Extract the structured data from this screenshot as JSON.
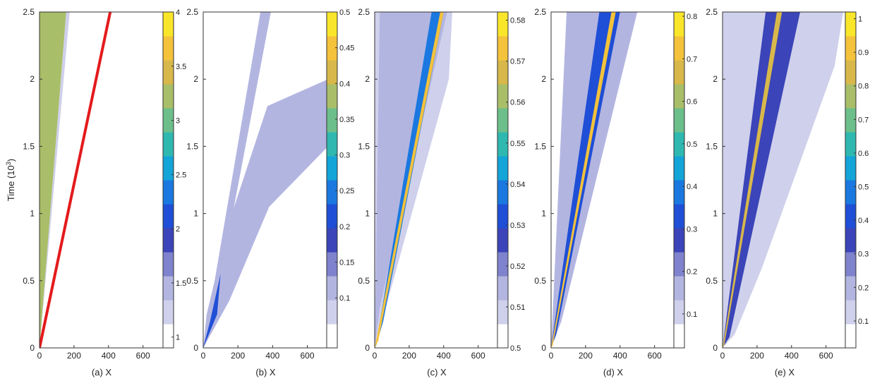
{
  "figure": {
    "ylabel_main": "Time (10",
    "ylabel_exp": "3",
    "ylabel_close": ")"
  },
  "colors": {
    "background": "#ffffff",
    "axis": "#333333",
    "red_line": "#e41a1c",
    "colormap": [
      "#ffffff",
      "#cfd0eb",
      "#b3b5e1",
      "#7f82cc",
      "#3b44b8",
      "#1f4fd6",
      "#1a78e0",
      "#13a4d8",
      "#2fb8b0",
      "#6cbf8a",
      "#a9be68",
      "#d8b84a",
      "#f4c23b",
      "#f9e62b"
    ]
  },
  "chart_data": [
    {
      "type": "heatmap",
      "panel": "(a)",
      "xlabel": "(a) X",
      "ylabel": "Time (10^3)",
      "xlim": [
        0,
        720
      ],
      "ylim": [
        0,
        2.5
      ],
      "xticks": [
        0,
        200,
        400,
        600
      ],
      "xtick_labels": [
        "0",
        "200",
        "400",
        "600"
      ],
      "yticks": [
        0,
        0.5,
        1,
        1.5,
        2,
        2.5
      ],
      "ytick_labels": [
        "0",
        "0.5",
        "1",
        "1.5",
        "2",
        "2.5"
      ],
      "colorbar": {
        "min": 0.9,
        "max": 4,
        "ticks": [
          1,
          1.5,
          2,
          2.5,
          3,
          3.5,
          4
        ],
        "tick_labels": [
          "1",
          "1.5",
          "2",
          "2.5",
          "3",
          "3.5",
          "4"
        ]
      },
      "regions": [
        {
          "name": "filled-core",
          "points": [
            [
              0,
              0
            ],
            [
              0,
              2.5
            ],
            [
              155,
              2.5
            ]
          ],
          "value": 3.4
        },
        {
          "name": "dense-band",
          "points": [
            [
              0,
              0
            ],
            [
              155,
              2.5
            ],
            [
              175,
              2.5
            ],
            [
              200,
              1.6
            ],
            [
              110,
              0.6
            ]
          ],
          "value": 1.15
        },
        {
          "name": "outer-halo",
          "points": [
            [
              0,
              0
            ],
            [
              175,
              2.5
            ],
            [
              370,
              2.5
            ],
            [
              370,
              1.9
            ],
            [
              270,
              1.35
            ],
            [
              110,
              0.25
            ]
          ],
          "value": 1.0
        }
      ],
      "red_line": [
        [
          0,
          0
        ],
        [
          410,
          2.5
        ]
      ]
    },
    {
      "type": "heatmap",
      "panel": "(b)",
      "xlabel": "(b) X",
      "xlim": [
        0,
        720
      ],
      "ylim": [
        0,
        2.5
      ],
      "xticks": [
        0,
        200,
        400,
        600
      ],
      "xtick_labels": [
        "0",
        "200",
        "400",
        "600"
      ],
      "yticks": [
        0,
        0.5,
        1,
        1.5,
        2,
        2.5
      ],
      "ytick_labels": [
        "0",
        "0.5",
        "1",
        "1.5",
        "2",
        "2.5"
      ],
      "colorbar": {
        "min": 0.03,
        "max": 0.5,
        "ticks": [
          0.1,
          0.15,
          0.2,
          0.25,
          0.3,
          0.35,
          0.4,
          0.45,
          0.5
        ],
        "tick_labels": [
          "0.1",
          "0.15",
          "0.2",
          "0.25",
          "0.3",
          "0.35",
          "0.4",
          "0.45",
          "0.5"
        ]
      },
      "regions": [
        {
          "name": "upper-haze",
          "points": [
            [
              0,
              1.4
            ],
            [
              0,
              2.5
            ],
            [
              330,
              2.5
            ],
            [
              170,
              1.4
            ]
          ],
          "value": 0.04
        },
        {
          "name": "left-ray",
          "points": [
            [
              0,
              0
            ],
            [
              330,
              2.5
            ],
            [
              390,
              2.5
            ],
            [
              60,
              0.25
            ]
          ],
          "value": 0.09
        },
        {
          "name": "lower-band",
          "points": [
            [
              0,
              0
            ],
            [
              20,
              0.25
            ],
            [
              140,
              0.9
            ],
            [
              370,
              1.8
            ],
            [
              720,
              2.0
            ],
            [
              720,
              1.5
            ],
            [
              380,
              1.05
            ],
            [
              150,
              0.35
            ]
          ],
          "value": 0.1
        },
        {
          "name": "lower-band-core",
          "points": [
            [
              0,
              0
            ],
            [
              40,
              0.2
            ],
            [
              100,
              0.55
            ],
            [
              80,
              0.25
            ]
          ],
          "value": 0.2
        }
      ],
      "red_line": null
    },
    {
      "type": "heatmap",
      "panel": "(c)",
      "xlabel": "(c) X",
      "xlim": [
        0,
        720
      ],
      "ylim": [
        0,
        2.5
      ],
      "xticks": [
        0,
        200,
        400,
        600
      ],
      "xtick_labels": [
        "0",
        "200",
        "400",
        "600"
      ],
      "yticks": [
        0,
        0.5,
        1,
        1.5,
        2,
        2.5
      ],
      "ytick_labels": [
        "0",
        "0.5",
        "1",
        "1.5",
        "2",
        "2.5"
      ],
      "colorbar": {
        "min": 0.5,
        "max": 0.582,
        "ticks": [
          0.5,
          0.51,
          0.52,
          0.53,
          0.54,
          0.55,
          0.56,
          0.57,
          0.58
        ],
        "tick_labels": [
          "0.5",
          "0.51",
          "0.52",
          "0.53",
          "0.54",
          "0.55",
          "0.56",
          "0.57",
          "0.58"
        ]
      },
      "regions": [
        {
          "name": "wedge-halo",
          "points": [
            [
              0,
              0
            ],
            [
              0,
              2.5
            ],
            [
              450,
              2.5
            ],
            [
              430,
              2.0
            ]
          ],
          "value": 0.505
        },
        {
          "name": "wedge-body",
          "points": [
            [
              0,
              0
            ],
            [
              30,
              2.5
            ],
            [
              420,
              2.5
            ],
            [
              30,
              0.3
            ]
          ],
          "value": 0.515
        },
        {
          "name": "wedge-core",
          "points": [
            [
              5,
              0
            ],
            [
              330,
              2.5
            ],
            [
              400,
              2.5
            ],
            [
              50,
              0.2
            ]
          ],
          "value": 0.535
        },
        {
          "name": "front-ridge",
          "points": [
            [
              0,
              0
            ],
            [
              380,
              2.5
            ],
            [
              400,
              2.5
            ],
            [
              20,
              0.05
            ]
          ],
          "value": 0.575
        }
      ],
      "red_line": null
    },
    {
      "type": "heatmap",
      "panel": "(d)",
      "xlabel": "(d) X",
      "xlim": [
        0,
        720
      ],
      "ylim": [
        0,
        2.5
      ],
      "xticks": [
        0,
        200,
        400,
        600
      ],
      "xtick_labels": [
        "0",
        "200",
        "400",
        "600"
      ],
      "yticks": [
        0,
        0.5,
        1,
        1.5,
        2,
        2.5
      ],
      "ytick_labels": [
        "0",
        "0.5",
        "1",
        "1.5",
        "2",
        "2.5"
      ],
      "colorbar": {
        "min": 0.02,
        "max": 0.81,
        "ticks": [
          0.1,
          0.2,
          0.3,
          0.4,
          0.5,
          0.6,
          0.7,
          0.8
        ],
        "tick_labels": [
          "0.1",
          "0.2",
          "0.3",
          "0.4",
          "0.5",
          "0.6",
          "0.7",
          "0.8"
        ]
      },
      "regions": [
        {
          "name": "wedge-halo",
          "points": [
            [
              0,
              0
            ],
            [
              0,
              2.5
            ],
            [
              580,
              2.5
            ],
            [
              320,
              1.5
            ]
          ],
          "value": 0.04
        },
        {
          "name": "wedge-body",
          "points": [
            [
              0,
              0
            ],
            [
              90,
              2.5
            ],
            [
              500,
              2.5
            ],
            [
              60,
              0.2
            ]
          ],
          "value": 0.12
        },
        {
          "name": "wedge-core",
          "points": [
            [
              0,
              0
            ],
            [
              280,
              2.5
            ],
            [
              400,
              2.5
            ],
            [
              30,
              0.1
            ]
          ],
          "value": 0.35
        },
        {
          "name": "front-ridge",
          "points": [
            [
              0,
              0
            ],
            [
              350,
              2.5
            ],
            [
              375,
              2.5
            ],
            [
              10,
              0.02
            ]
          ],
          "value": 0.75
        }
      ],
      "red_line": null
    },
    {
      "type": "heatmap",
      "panel": "(e)",
      "xlabel": "(e) X",
      "xlim": [
        0,
        720
      ],
      "ylim": [
        0,
        2.5
      ],
      "xticks": [
        0,
        200,
        400,
        600
      ],
      "xtick_labels": [
        "0",
        "200",
        "400",
        "600"
      ],
      "yticks": [
        0,
        0.5,
        1,
        1.5,
        2,
        2.5
      ],
      "ytick_labels": [
        "0",
        "0.5",
        "1",
        "1.5",
        "2",
        "2.5"
      ],
      "colorbar": {
        "min": 0.02,
        "max": 1.02,
        "ticks": [
          0.1,
          0.2,
          0.3,
          0.4,
          0.5,
          0.6,
          0.7,
          0.8,
          0.9,
          1
        ],
        "tick_labels": [
          "0.1",
          "0.2",
          "0.3",
          "0.4",
          "0.5",
          "0.6",
          "0.7",
          "0.8",
          "0.9",
          "1"
        ]
      },
      "regions": [
        {
          "name": "wedge-halo",
          "points": [
            [
              0,
              0
            ],
            [
              0,
              2.5
            ],
            [
              720,
              2.5
            ],
            [
              720,
              1.9
            ],
            [
              300,
              0.8
            ]
          ],
          "value": 0.04
        },
        {
          "name": "wedge-body",
          "points": [
            [
              0,
              0
            ],
            [
              0,
              2.5
            ],
            [
              700,
              2.5
            ],
            [
              650,
              2.1
            ],
            [
              230,
              0.6
            ],
            [
              70,
              0.1
            ]
          ],
          "value": 0.12
        },
        {
          "name": "wedge-core",
          "points": [
            [
              0,
              0
            ],
            [
              250,
              2.5
            ],
            [
              450,
              2.5
            ],
            [
              40,
              0.08
            ]
          ],
          "value": 0.35
        },
        {
          "name": "front-ridge",
          "points": [
            [
              0,
              0
            ],
            [
              315,
              2.5
            ],
            [
              345,
              2.5
            ],
            [
              10,
              0.02
            ]
          ],
          "value": 0.85
        }
      ],
      "red_line": null
    }
  ]
}
